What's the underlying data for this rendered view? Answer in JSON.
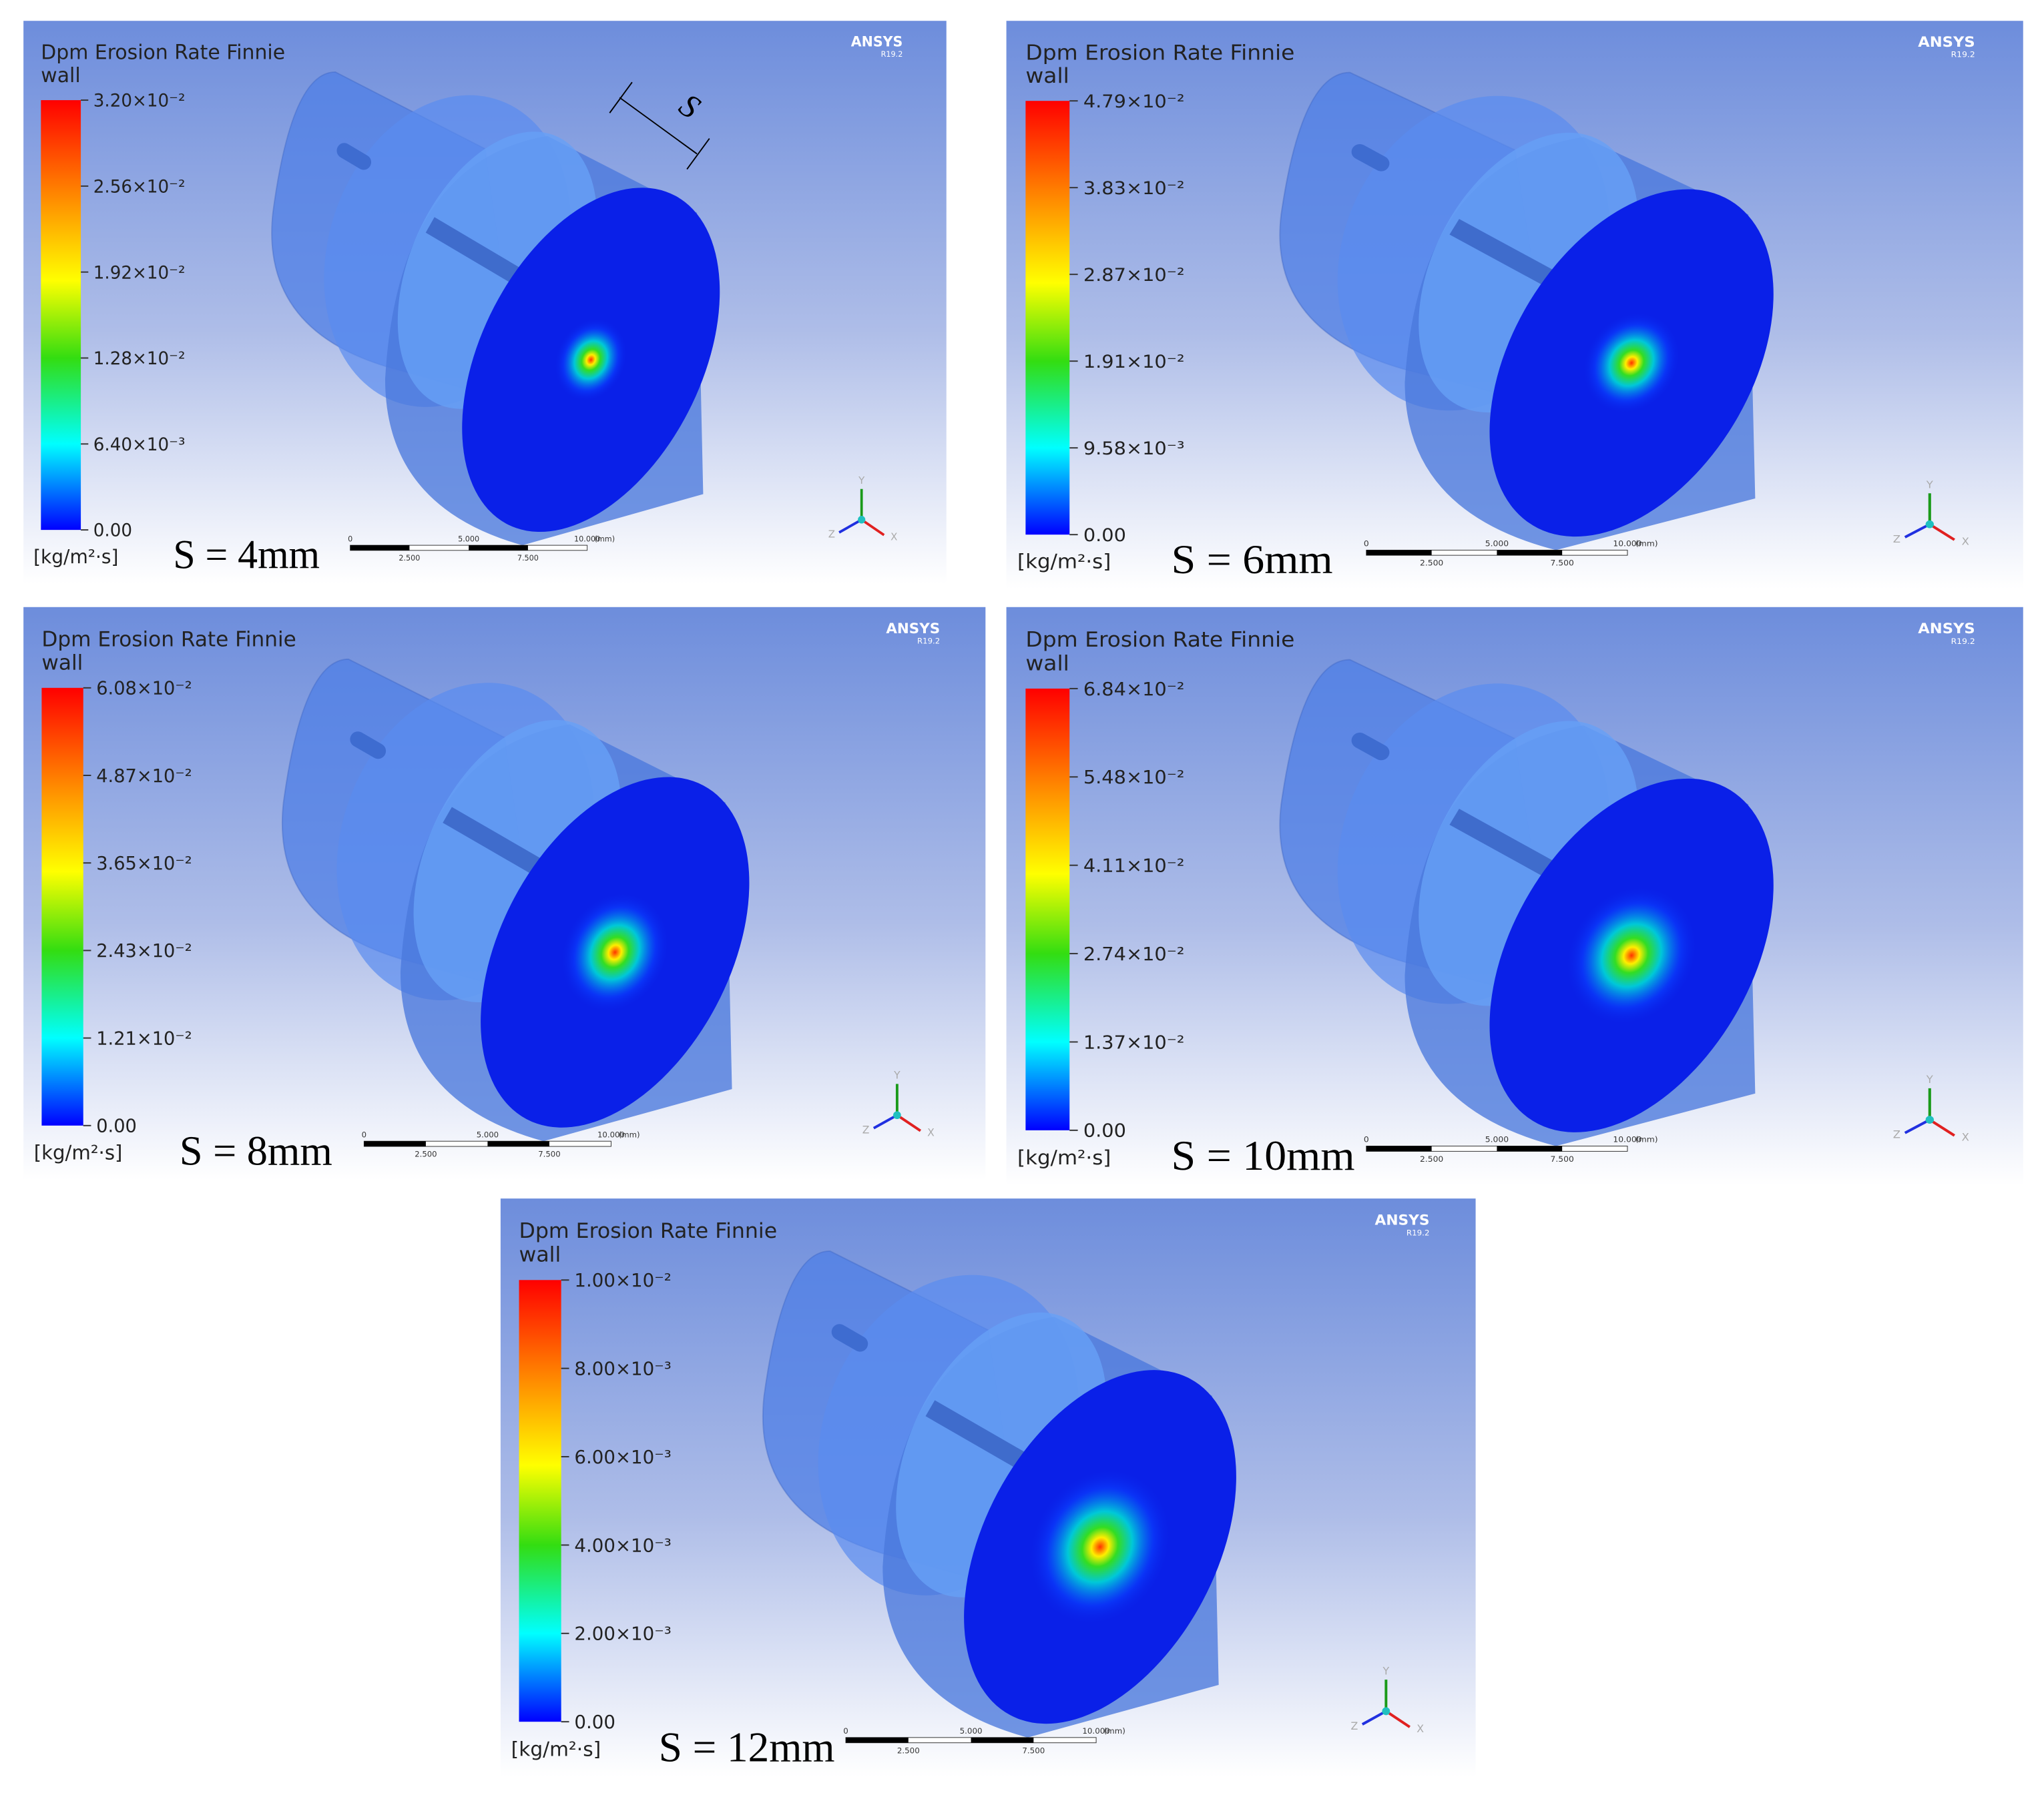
{
  "annotation": "S",
  "panels": [
    {
      "title": "Dpm Erosion Rate Finnie",
      "subtitle": "wall",
      "ticks": [
        "3.20×10⁻²",
        "2.56×10⁻²",
        "1.92×10⁻²",
        "1.28×10⁻²",
        "6.40×10⁻³",
        "0.00"
      ],
      "unit": "[kg/m²·s]",
      "label": "S = 4mm",
      "brand": "ANSYS",
      "version": "R19.2",
      "scale": [
        "0",
        "5.000",
        "10.000",
        "(mm)",
        "2.500",
        "7.500"
      ],
      "axes": [
        "Y",
        "Z",
        "X"
      ]
    },
    {
      "title": "Dpm Erosion Rate Finnie",
      "subtitle": "wall",
      "ticks": [
        "4.79×10⁻²",
        "3.83×10⁻²",
        "2.87×10⁻²",
        "1.91×10⁻²",
        "9.58×10⁻³",
        "0.00"
      ],
      "unit": "[kg/m²·s]",
      "label": "S = 6mm",
      "brand": "ANSYS",
      "version": "R19.2",
      "scale": [
        "0",
        "5.000",
        "10.000",
        "(mm)",
        "2.500",
        "7.500"
      ],
      "axes": [
        "Y",
        "Z",
        "X"
      ]
    },
    {
      "title": "Dpm Erosion Rate Finnie",
      "subtitle": "wall",
      "ticks": [
        "6.08×10⁻²",
        "4.87×10⁻²",
        "3.65×10⁻²",
        "2.43×10⁻²",
        "1.21×10⁻²",
        "0.00"
      ],
      "unit": "[kg/m²·s]",
      "label": "S = 8mm",
      "brand": "ANSYS",
      "version": "R19.2",
      "scale": [
        "0",
        "5.000",
        "10.000",
        "(mm)",
        "2.500",
        "7.500"
      ],
      "axes": [
        "Y",
        "Z",
        "X"
      ]
    },
    {
      "title": "Dpm Erosion Rate Finnie",
      "subtitle": "wall",
      "ticks": [
        "6.84×10⁻²",
        "5.48×10⁻²",
        "4.11×10⁻²",
        "2.74×10⁻²",
        "1.37×10⁻²",
        "0.00"
      ],
      "unit": "[kg/m²·s]",
      "label": "S = 10mm",
      "brand": "ANSYS",
      "version": "R19.2",
      "scale": [
        "0",
        "5.000",
        "10.000",
        "(mm)",
        "2.500",
        "7.500"
      ],
      "axes": [
        "Y",
        "Z",
        "X"
      ]
    },
    {
      "title": "Dpm Erosion Rate Finnie",
      "subtitle": "wall",
      "ticks": [
        "1.00×10⁻²",
        "8.00×10⁻³",
        "6.00×10⁻³",
        "4.00×10⁻³",
        "2.00×10⁻³",
        "0.00"
      ],
      "unit": "[kg/m²·s]",
      "label": "S = 12mm",
      "brand": "ANSYS",
      "version": "R19.2",
      "scale": [
        "0",
        "5.000",
        "10.000",
        "(mm)",
        "2.500",
        "7.500"
      ],
      "axes": [
        "Y",
        "Z",
        "X"
      ]
    }
  ]
}
